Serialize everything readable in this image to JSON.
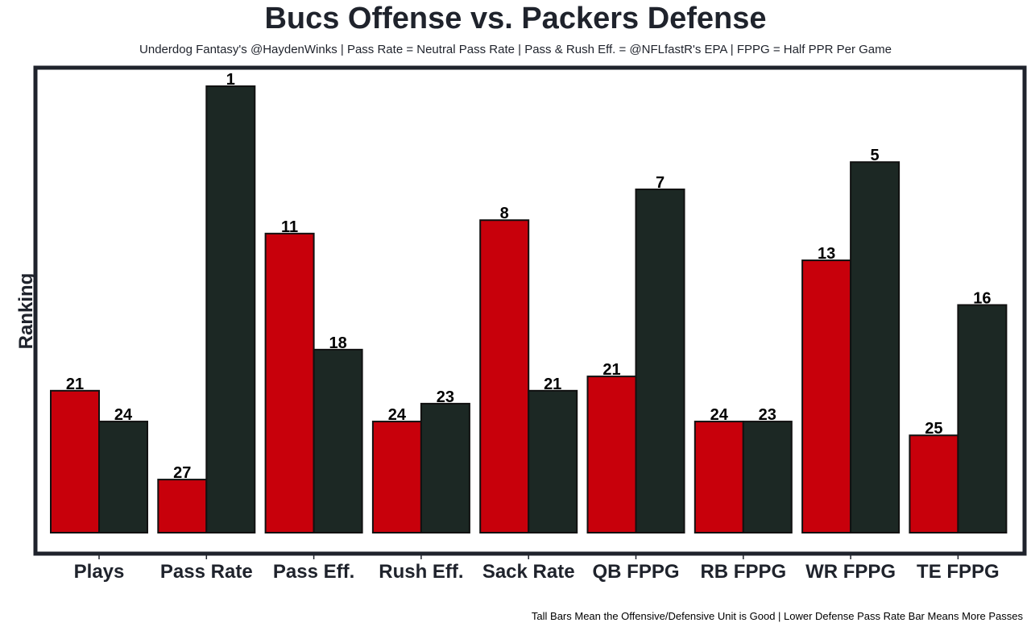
{
  "chart_data": {
    "type": "bar",
    "title": "Bucs Offense vs. Packers Defense",
    "subtitle": "Underdog Fantasy's @HaydenWinks | Pass Rate = Neutral Pass Rate | Pass & Rush Eff. = @NFLfastR's EPA | FPPG = Half PPR Per Game",
    "caption": "Tall Bars Mean the Offensive/Defensive Unit is Good | Lower Defense Pass Rate Bar Means More Passes",
    "xlabel": "",
    "ylabel": "Ranking",
    "grid": false,
    "legend": "none",
    "categories": [
      "Plays",
      "Pass Rate",
      "Pass Eff.",
      "Rush Eff.",
      "Sack Rate",
      "QB FPPG",
      "RB FPPG",
      "WR FPPG",
      "TE FPPG"
    ],
    "series": [
      {
        "name": "Bucs Offense",
        "color": "#c8000b",
        "labels": [
          21,
          27,
          11,
          24,
          8,
          21,
          24,
          13,
          25
        ],
        "relative_height": [
          0.318,
          0.119,
          0.67,
          0.249,
          0.7,
          0.35,
          0.249,
          0.61,
          0.218
        ]
      },
      {
        "name": "Packers Defense",
        "color": "#1c2824",
        "labels": [
          24,
          1,
          18,
          23,
          21,
          7,
          23,
          5,
          16
        ],
        "relative_height": [
          0.249,
          1.0,
          0.41,
          0.289,
          0.318,
          0.769,
          0.249,
          0.83,
          0.51
        ]
      }
    ]
  }
}
